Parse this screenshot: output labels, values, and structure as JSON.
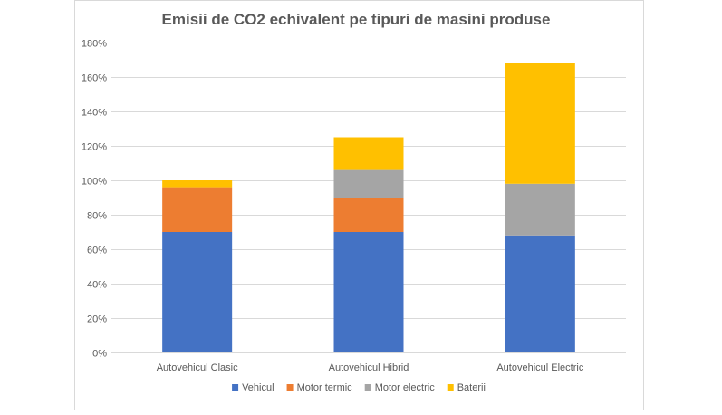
{
  "chart_data": {
    "type": "bar",
    "stacked": true,
    "title": "Emisii de CO2 echivalent pe tipuri de masini  produse",
    "categories": [
      "Autovehicul Clasic",
      "Autovehicul Hibrid",
      "Autovehicul Electric"
    ],
    "series": [
      {
        "name": "Vehicul",
        "color": "#4472C4",
        "values": [
          70,
          70,
          68
        ]
      },
      {
        "name": "Motor termic",
        "color": "#ED7D31",
        "values": [
          26,
          20,
          0
        ]
      },
      {
        "name": "Motor electric",
        "color": "#A5A5A5",
        "values": [
          0,
          16,
          30
        ]
      },
      {
        "name": "Baterii",
        "color": "#FFC000",
        "values": [
          4,
          19,
          70
        ]
      }
    ],
    "ylim": [
      0,
      180
    ],
    "yticks": [
      "0%",
      "20%",
      "40%",
      "60%",
      "80%",
      "100%",
      "120%",
      "140%",
      "160%",
      "180%"
    ],
    "grid": true,
    "legend": "bottom"
  }
}
